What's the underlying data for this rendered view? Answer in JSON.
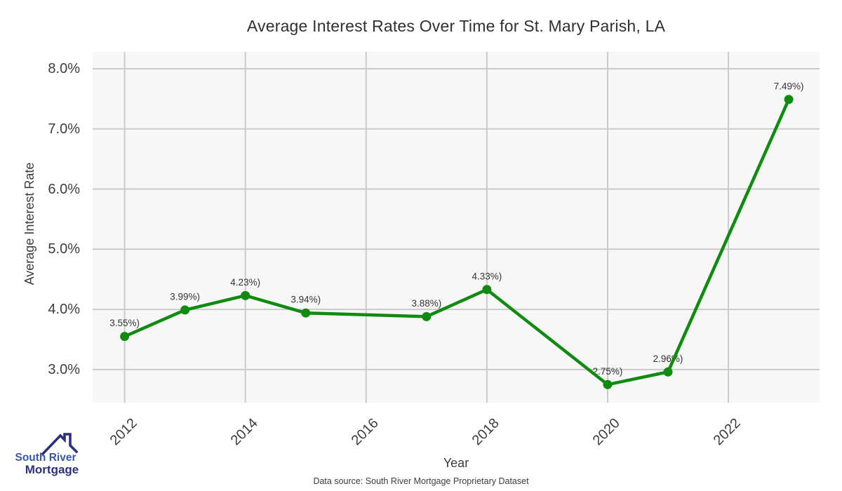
{
  "title": "Average Interest Rates Over Time for St. Mary Parish, LA",
  "chart_data": {
    "type": "line",
    "series_name": "Average Interest Rate",
    "x": [
      2012,
      2013,
      2014,
      2015,
      2017,
      2018,
      2020,
      2021,
      2023
    ],
    "y": [
      3.55,
      3.99,
      4.23,
      3.94,
      3.88,
      4.33,
      2.75,
      2.96,
      7.49
    ],
    "point_labels": [
      "3.55%)",
      "3.99%)",
      "4.23%)",
      "3.94%)",
      "3.88%)",
      "4.33%)",
      "2.75%)",
      "2.96%)",
      "7.49%)"
    ],
    "xlabel": "Year",
    "ylabel": "Average Interest Rate",
    "xtick_values": [
      2012,
      2014,
      2016,
      2018,
      2020,
      2022
    ],
    "xtick_labels": [
      "2012",
      "2014",
      "2016",
      "2018",
      "2020",
      "2022"
    ],
    "ytick_values": [
      3,
      4,
      5,
      6,
      7,
      8
    ],
    "ytick_labels": [
      "3.0%",
      "4.0%",
      "5.0%",
      "6.0%",
      "7.0%",
      "8.0%"
    ],
    "xlim": [
      2011.47,
      2023.51
    ],
    "ylim": [
      2.45,
      8.28
    ],
    "grid": true,
    "legend": "none",
    "line_color": "#0f8b0f",
    "marker_color": "#0f8b0f",
    "plot_bg_color": "#f7f7f7",
    "grid_color": "#cbcbcb",
    "label_color": "#333333"
  },
  "footer": {
    "source": "Data source: South River Mortgage Proprietary Dataset"
  },
  "logo": {
    "line1": "South River",
    "line2": "Mortgage",
    "icon": "house-roof-icon",
    "color_primary": "#3a57a7",
    "color_secondary": "#2b3180"
  }
}
